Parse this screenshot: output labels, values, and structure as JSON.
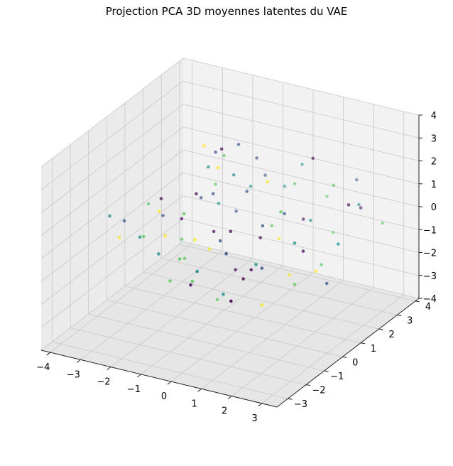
{
  "chart_data": {
    "type": "scatter",
    "projection": "3d",
    "title": "Projection PCA 3D moyennes latentes du VAE",
    "xlabel": "",
    "ylabel": "",
    "zlabel": "",
    "grid": true,
    "legend": "none",
    "xlim": [
      -4.3,
      3.5
    ],
    "ylim": [
      -3.6,
      4.2
    ],
    "zlim": [
      -4,
      4
    ],
    "x_ticks": [
      -4,
      -3,
      -2,
      -1,
      0,
      1,
      2,
      3
    ],
    "y_ticks": [
      -3,
      -2,
      -1,
      0,
      1,
      2,
      3,
      4
    ],
    "z_ticks": [
      -4,
      -3,
      -2,
      -1,
      0,
      1,
      2,
      3,
      4
    ],
    "x_tick_labels": [
      "−4",
      "−3",
      "−2",
      "−1",
      "0",
      "1",
      "2",
      "3"
    ],
    "y_tick_labels": [
      "−3",
      "−2",
      "−1",
      "0",
      "1",
      "2",
      "3",
      "4"
    ],
    "z_tick_labels": [
      "−4",
      "−3",
      "−2",
      "−1",
      "0",
      "1",
      "2",
      "3",
      "4"
    ],
    "colormap": [
      "#440154",
      "#3b528b",
      "#21918c",
      "#5ec962",
      "#fde725"
    ],
    "pane_color": "#f2f2f2",
    "grid_color": "#c8c8c8",
    "points": [
      {
        "x": -3.9,
        "y": -0.5,
        "z": 0.1,
        "c": 0.45
      },
      {
        "x": -3.6,
        "y": -0.2,
        "z": -0.2,
        "c": 0.2
      },
      {
        "x": -3.4,
        "y": -0.8,
        "z": -0.5,
        "c": 0.9
      },
      {
        "x": -3.1,
        "y": 0.3,
        "z": 0.4,
        "c": 0.6
      },
      {
        "x": -2.8,
        "y": 0.5,
        "z": 0.6,
        "c": 0.1
      },
      {
        "x": -2.9,
        "y": -0.3,
        "z": -0.6,
        "c": 0.7
      },
      {
        "x": -2.5,
        "y": 0.1,
        "z": 0.2,
        "c": 0.35
      },
      {
        "x": -2.6,
        "y": -1.0,
        "z": -0.1,
        "c": 0.55
      },
      {
        "x": -2.3,
        "y": 0.8,
        "z": -0.3,
        "c": 0.0
      },
      {
        "x": -2.2,
        "y": -0.6,
        "z": 0.9,
        "c": 0.95
      },
      {
        "x": -2.0,
        "y": 0.3,
        "z": -0.8,
        "c": 0.65
      },
      {
        "x": -1.9,
        "y": 1.2,
        "z": 0.5,
        "c": 0.25
      },
      {
        "x": -1.8,
        "y": -1.3,
        "z": -0.4,
        "c": 0.5
      },
      {
        "x": -1.7,
        "y": 0.6,
        "z": 1.1,
        "c": 0.15
      },
      {
        "x": -1.6,
        "y": -0.2,
        "z": -1.2,
        "c": 0.75
      },
      {
        "x": -1.5,
        "y": 1.5,
        "z": 0.2,
        "c": 0.4
      },
      {
        "x": -1.4,
        "y": -1.6,
        "z": 0.7,
        "c": 0.85
      },
      {
        "x": -1.3,
        "y": 0.9,
        "z": -0.6,
        "c": 0.05
      },
      {
        "x": -1.2,
        "y": -0.9,
        "z": 1.3,
        "c": 0.6
      },
      {
        "x": -1.1,
        "y": 1.8,
        "z": -0.2,
        "c": 0.3
      },
      {
        "x": -1.0,
        "y": -2.0,
        "z": -0.9,
        "c": 0.7
      },
      {
        "x": -0.9,
        "y": 0.2,
        "z": 1.6,
        "c": 0.2
      },
      {
        "x": -0.8,
        "y": 2.1,
        "z": 0.8,
        "c": 0.55
      },
      {
        "x": -0.8,
        "y": -1.2,
        "z": -1.5,
        "c": 0.1
      },
      {
        "x": -0.7,
        "y": 1.0,
        "z": 2.0,
        "c": 0.45
      },
      {
        "x": -0.6,
        "y": -0.5,
        "z": -0.3,
        "c": 0.9
      },
      {
        "x": -0.5,
        "y": 2.4,
        "z": 1.2,
        "c": 0.25
      },
      {
        "x": -0.5,
        "y": -2.3,
        "z": 0.4,
        "c": 0.65
      },
      {
        "x": -0.4,
        "y": 0.6,
        "z": -1.8,
        "c": 0.0
      },
      {
        "x": -0.3,
        "y": 1.6,
        "z": 2.5,
        "c": 0.35
      },
      {
        "x": -0.3,
        "y": -1.8,
        "z": 1.0,
        "c": 0.8
      },
      {
        "x": -0.2,
        "y": 0.0,
        "z": 0.3,
        "c": 0.15
      },
      {
        "x": -0.1,
        "y": 2.8,
        "z": 0.6,
        "c": 0.5
      },
      {
        "x": -0.1,
        "y": -0.9,
        "z": -2.1,
        "c": 0.6
      },
      {
        "x": 0.0,
        "y": 1.3,
        "z": -0.7,
        "c": 0.05
      },
      {
        "x": 0.1,
        "y": -2.6,
        "z": -0.2,
        "c": 0.7
      },
      {
        "x": 0.1,
        "y": 0.4,
        "z": 1.9,
        "c": 0.3
      },
      {
        "x": 0.2,
        "y": 2.0,
        "z": -1.1,
        "c": 0.95
      },
      {
        "x": 0.3,
        "y": -1.4,
        "z": 0.9,
        "c": 0.2
      },
      {
        "x": 0.3,
        "y": 3.1,
        "z": 1.5,
        "c": 0.55
      },
      {
        "x": 0.4,
        "y": -0.3,
        "z": -1.4,
        "c": 0.1
      },
      {
        "x": 0.5,
        "y": 1.1,
        "z": 0.1,
        "c": 0.65
      },
      {
        "x": 0.5,
        "y": -3.0,
        "z": 0.6,
        "c": 0.4
      },
      {
        "x": 0.6,
        "y": 0.7,
        "z": 2.3,
        "c": 0.85
      },
      {
        "x": 0.7,
        "y": 2.5,
        "z": -0.4,
        "c": 0.0
      },
      {
        "x": 0.7,
        "y": -1.9,
        "z": -1.0,
        "c": 0.5
      },
      {
        "x": 0.8,
        "y": 0.1,
        "z": 0.8,
        "c": 0.25
      },
      {
        "x": 0.9,
        "y": 1.7,
        "z": 1.7,
        "c": 0.7
      },
      {
        "x": 0.9,
        "y": -0.7,
        "z": -0.6,
        "c": 0.15
      },
      {
        "x": 1.0,
        "y": 3.3,
        "z": 0.2,
        "c": 0.6
      },
      {
        "x": 1.1,
        "y": -2.4,
        "z": 1.2,
        "c": 0.35
      },
      {
        "x": 1.2,
        "y": 0.9,
        "z": -1.7,
        "c": 0.9
      },
      {
        "x": 1.2,
        "y": 2.2,
        "z": 2.6,
        "c": 0.05
      },
      {
        "x": 1.3,
        "y": -1.1,
        "z": 0.0,
        "c": 0.55
      },
      {
        "x": 1.4,
        "y": 0.3,
        "z": 1.4,
        "c": 0.2
      },
      {
        "x": 1.5,
        "y": 2.8,
        "z": -0.9,
        "c": 0.75
      },
      {
        "x": 1.5,
        "y": -2.8,
        "z": -0.5,
        "c": 0.1
      },
      {
        "x": 1.6,
        "y": 1.4,
        "z": 0.5,
        "c": 0.45
      },
      {
        "x": 1.7,
        "y": -0.4,
        "z": 2.0,
        "c": 0.65
      },
      {
        "x": 1.8,
        "y": 3.6,
        "z": 1.0,
        "c": 0.3
      },
      {
        "x": 1.8,
        "y": -1.6,
        "z": -1.3,
        "c": 0.85
      },
      {
        "x": 1.9,
        "y": 0.5,
        "z": -0.2,
        "c": 0.0
      },
      {
        "x": 2.0,
        "y": 2.0,
        "z": 1.8,
        "c": 0.6
      },
      {
        "x": 2.1,
        "y": -2.1,
        "z": 0.7,
        "c": 0.25
      },
      {
        "x": 2.2,
        "y": 1.0,
        "z": -1.0,
        "c": 0.7
      },
      {
        "x": 2.3,
        "y": 3.0,
        "z": 0.3,
        "c": 0.15
      },
      {
        "x": 2.4,
        "y": -0.8,
        "z": 1.1,
        "c": 0.5
      },
      {
        "x": 2.5,
        "y": 0.2,
        "z": -0.7,
        "c": 0.95
      },
      {
        "x": 2.6,
        "y": 2.4,
        "z": 0.9,
        "c": 0.4
      },
      {
        "x": 2.7,
        "y": -1.3,
        "z": -0.3,
        "c": 0.6
      },
      {
        "x": 2.8,
        "y": 1.5,
        "z": 1.5,
        "c": 0.05
      },
      {
        "x": 3.0,
        "y": 0.6,
        "z": 0.4,
        "c": 0.55
      },
      {
        "x": 3.1,
        "y": -0.2,
        "z": -0.8,
        "c": 0.3
      },
      {
        "x": 3.2,
        "y": 2.7,
        "z": 0.1,
        "c": 0.65
      },
      {
        "x": -1.2,
        "y": 0.2,
        "z": 3.6,
        "c": 0.85
      },
      {
        "x": -1.0,
        "y": 0.5,
        "z": 3.2,
        "c": 0.3
      },
      {
        "x": -0.9,
        "y": 0.8,
        "z": 2.9,
        "c": 0.7
      },
      {
        "x": -1.1,
        "y": 1.0,
        "z": 3.0,
        "c": 0.1
      },
      {
        "x": -0.8,
        "y": 0.3,
        "z": 2.7,
        "c": 0.95
      },
      {
        "x": -1.3,
        "y": 0.6,
        "z": 2.4,
        "c": 0.45
      },
      {
        "x": -0.6,
        "y": 1.1,
        "z": 3.3,
        "c": 0.2
      },
      {
        "x": -0.7,
        "y": 0.0,
        "z": 2.2,
        "c": 0.6
      }
    ]
  }
}
